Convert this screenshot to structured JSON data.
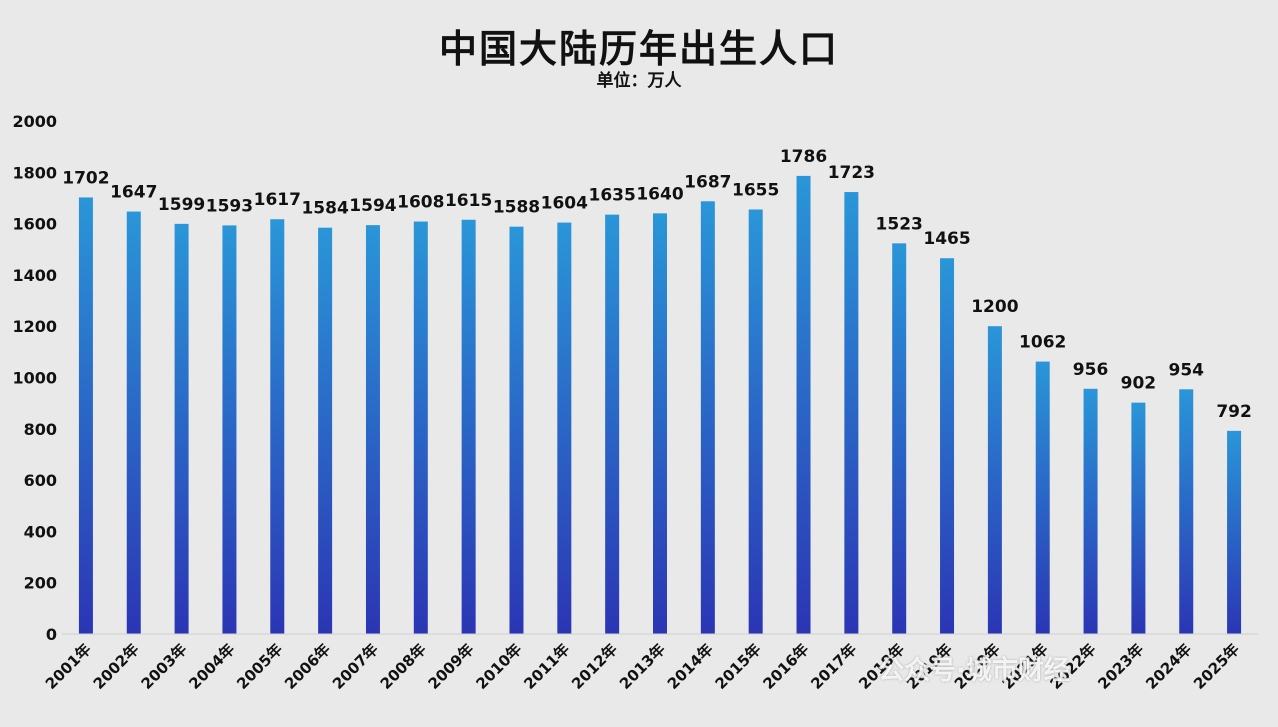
{
  "title": "中国大陆历年出生人口",
  "subtitle": "单位：万人",
  "watermark": "公众号·城市财经",
  "colors": {
    "bar_top": "#2a96d8",
    "bar_bottom": "#2b35b4",
    "background": "#e9e9ea",
    "text": "#111111"
  },
  "chart_data": {
    "type": "bar",
    "title": "中国大陆历年出生人口",
    "ylabel": "",
    "xlabel": "",
    "ylim": [
      0,
      2000
    ],
    "yticks": [
      0,
      200,
      400,
      600,
      800,
      1000,
      1200,
      1400,
      1600,
      1800,
      2000
    ],
    "grid": false,
    "categories": [
      "2001年",
      "2002年",
      "2003年",
      "2004年",
      "2005年",
      "2006年",
      "2007年",
      "2008年",
      "2009年",
      "2010年",
      "2011年",
      "2012年",
      "2013年",
      "2014年",
      "2015年",
      "2016年",
      "2017年",
      "2018年",
      "2019年",
      "2020年",
      "2021年",
      "2022年",
      "2023年",
      "2024年",
      "2025年"
    ],
    "values": [
      1702,
      1647,
      1599,
      1593,
      1617,
      1584,
      1594,
      1608,
      1615,
      1588,
      1604,
      1635,
      1640,
      1687,
      1655,
      1786,
      1723,
      1523,
      1465,
      1200,
      1062,
      956,
      902,
      954,
      792
    ]
  }
}
